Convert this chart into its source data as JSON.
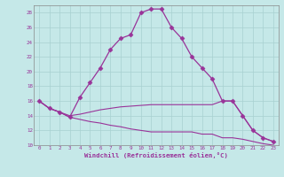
{
  "xlabel": "Windchill (Refroidissement éolien,°C)",
  "background_color": "#c5e8e8",
  "grid_color": "#a8d0d0",
  "line_color": "#993399",
  "xlim": [
    -0.5,
    23.5
  ],
  "ylim": [
    10,
    29
  ],
  "yticks": [
    10,
    12,
    14,
    16,
    18,
    20,
    22,
    24,
    26,
    28
  ],
  "xticks": [
    0,
    1,
    2,
    3,
    4,
    5,
    6,
    7,
    8,
    9,
    10,
    11,
    12,
    13,
    14,
    15,
    16,
    17,
    18,
    19,
    20,
    21,
    22,
    23
  ],
  "series": [
    {
      "x": [
        0,
        1,
        2,
        3,
        4,
        5,
        6,
        7,
        8,
        9,
        10,
        11,
        12,
        13,
        14,
        15,
        16,
        17,
        18,
        19,
        20,
        21,
        22,
        23
      ],
      "y": [
        16.0,
        15.0,
        14.5,
        13.8,
        16.5,
        18.5,
        20.5,
        23.0,
        24.5,
        25.0,
        28.0,
        28.5,
        28.5,
        26.0,
        24.5,
        22.0,
        20.5,
        19.0,
        16.0,
        16.0,
        14.0,
        12.0,
        11.0,
        10.5
      ],
      "marker": true
    },
    {
      "x": [
        0,
        1,
        2,
        3,
        4,
        5,
        6,
        7,
        8,
        9,
        10,
        11,
        12,
        13,
        14,
        15,
        16,
        17,
        18,
        19,
        20,
        21,
        22,
        23
      ],
      "y": [
        16.0,
        15.0,
        14.5,
        14.0,
        14.2,
        14.5,
        14.8,
        15.0,
        15.2,
        15.3,
        15.4,
        15.5,
        15.5,
        15.5,
        15.5,
        15.5,
        15.5,
        15.5,
        16.0,
        16.0,
        14.0,
        12.0,
        11.0,
        10.5
      ],
      "marker": false
    },
    {
      "x": [
        0,
        1,
        2,
        3,
        4,
        5,
        6,
        7,
        8,
        9,
        10,
        11,
        12,
        13,
        14,
        15,
        16,
        17,
        18,
        19,
        20,
        21,
        22,
        23
      ],
      "y": [
        16.0,
        15.0,
        14.5,
        13.8,
        13.5,
        13.2,
        13.0,
        12.7,
        12.5,
        12.2,
        12.0,
        11.8,
        11.8,
        11.8,
        11.8,
        11.8,
        11.5,
        11.5,
        11.0,
        11.0,
        10.8,
        10.5,
        10.2,
        10.0
      ],
      "marker": false
    }
  ]
}
